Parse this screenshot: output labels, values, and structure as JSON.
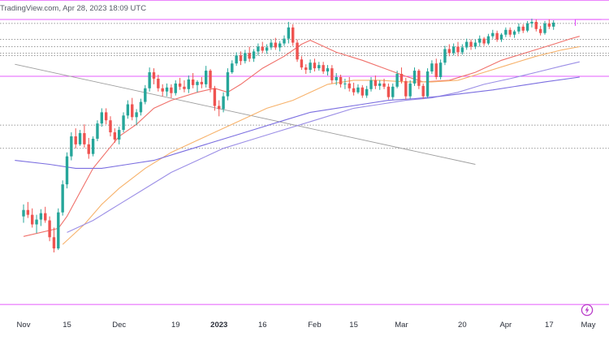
{
  "header": {
    "text": "TradingView.com, Apr 28, 2023 18:09 UTC"
  },
  "colors": {
    "bull": "#26a69a",
    "bear": "#ef5350",
    "ema_fast": "#f0706a",
    "ema_mid": "#f7b26b",
    "ema_slow": "#9b8ee6",
    "ema_long": "#7b6ee0",
    "magenta": "#e040fb",
    "trend": "#9e9e9e",
    "level": "#7a7a7a"
  },
  "chart_data": {
    "type": "candlestick",
    "title": "",
    "xlabel": "",
    "ylabel": "",
    "ylim": [
      -6,
      31
    ],
    "grid": false,
    "x_ticks": [
      {
        "label": "Nov",
        "index": 0,
        "bold": false
      },
      {
        "label": "15",
        "index": 10,
        "bold": false
      },
      {
        "label": "Dec",
        "index": 22,
        "bold": false
      },
      {
        "label": "19",
        "index": 35,
        "bold": false
      },
      {
        "label": "2023",
        "index": 45,
        "bold": true
      },
      {
        "label": "16",
        "index": 55,
        "bold": false
      },
      {
        "label": "Feb",
        "index": 67,
        "bold": false
      },
      {
        "label": "15",
        "index": 76,
        "bold": false
      },
      {
        "label": "Mar",
        "index": 87,
        "bold": false
      },
      {
        "label": "20",
        "index": 101,
        "bold": false
      },
      {
        "label": "Apr",
        "index": 111,
        "bold": false
      },
      {
        "label": "17",
        "index": 121,
        "bold": false
      },
      {
        "label": "May",
        "index": 130,
        "bold": false
      }
    ],
    "candles": [
      [
        6.0,
        7.5,
        5.2,
        6.8
      ],
      [
        6.8,
        7.8,
        5.8,
        6.2
      ],
      [
        6.2,
        7.0,
        4.6,
        5.0
      ],
      [
        5.0,
        6.2,
        3.9,
        5.6
      ],
      [
        5.6,
        6.9,
        4.8,
        6.4
      ],
      [
        6.4,
        7.2,
        5.2,
        5.5
      ],
      [
        5.5,
        6.0,
        2.9,
        3.4
      ],
      [
        3.4,
        4.6,
        1.5,
        2.0
      ],
      [
        2.0,
        7.0,
        1.8,
        6.5
      ],
      [
        6.5,
        10.5,
        6.1,
        10.0
      ],
      [
        10.0,
        14.0,
        9.5,
        13.5
      ],
      [
        13.5,
        16.5,
        13.0,
        16.0
      ],
      [
        16.0,
        17.0,
        14.5,
        15.0
      ],
      [
        15.0,
        16.8,
        14.8,
        16.4
      ],
      [
        16.4,
        17.5,
        14.6,
        15.0
      ],
      [
        15.0,
        15.8,
        13.2,
        13.8
      ],
      [
        13.8,
        16.0,
        13.5,
        15.7
      ],
      [
        15.7,
        18.0,
        15.4,
        17.6
      ],
      [
        17.6,
        19.5,
        17.2,
        19.0
      ],
      [
        19.0,
        19.5,
        17.5,
        18.0
      ],
      [
        18.0,
        18.5,
        16.0,
        16.5
      ],
      [
        16.5,
        17.0,
        15.2,
        15.6
      ],
      [
        15.6,
        17.2,
        15.0,
        16.8
      ],
      [
        16.8,
        19.0,
        16.5,
        18.6
      ],
      [
        18.6,
        20.5,
        18.2,
        20.0
      ],
      [
        20.0,
        20.8,
        18.0,
        18.4
      ],
      [
        18.4,
        19.4,
        17.4,
        19.0
      ],
      [
        19.0,
        20.7,
        18.6,
        20.3
      ],
      [
        20.3,
        22.4,
        20.0,
        22.0
      ],
      [
        22.0,
        24.6,
        21.6,
        24.0
      ],
      [
        24.0,
        24.5,
        22.5,
        23.2
      ],
      [
        23.2,
        23.7,
        21.6,
        22.0
      ],
      [
        22.0,
        22.5,
        21.0,
        21.6
      ],
      [
        21.6,
        22.6,
        21.0,
        22.1
      ],
      [
        22.1,
        22.5,
        20.8,
        21.4
      ],
      [
        21.4,
        23.0,
        21.1,
        22.6
      ],
      [
        22.6,
        23.3,
        21.8,
        22.2
      ],
      [
        22.2,
        23.0,
        21.5,
        21.9
      ],
      [
        21.9,
        23.6,
        21.4,
        23.1
      ],
      [
        23.1,
        23.9,
        22.0,
        22.4
      ],
      [
        22.4,
        23.0,
        21.5,
        22.8
      ],
      [
        22.8,
        23.4,
        22.0,
        22.5
      ],
      [
        22.5,
        24.8,
        22.1,
        24.2
      ],
      [
        24.2,
        24.4,
        21.5,
        22.0
      ],
      [
        22.0,
        22.3,
        19.2,
        19.8
      ],
      [
        19.8,
        20.5,
        18.5,
        19.4
      ],
      [
        19.4,
        21.5,
        19.0,
        21.0
      ],
      [
        21.0,
        24.5,
        20.5,
        24.0
      ],
      [
        24.0,
        25.5,
        23.8,
        25.1
      ],
      [
        25.1,
        26.5,
        24.8,
        26.1
      ],
      [
        26.1,
        26.6,
        24.9,
        25.4
      ],
      [
        25.4,
        26.8,
        25.1,
        26.4
      ],
      [
        26.4,
        27.2,
        25.3,
        25.7
      ],
      [
        25.7,
        26.9,
        25.3,
        26.6
      ],
      [
        26.6,
        27.6,
        26.1,
        27.2
      ],
      [
        27.2,
        27.8,
        26.4,
        26.7
      ],
      [
        26.7,
        27.5,
        26.3,
        27.1
      ],
      [
        27.1,
        28.1,
        26.8,
        27.7
      ],
      [
        27.7,
        28.3,
        26.8,
        27.1
      ],
      [
        27.1,
        27.9,
        26.6,
        27.6
      ],
      [
        27.6,
        28.6,
        27.3,
        28.2
      ],
      [
        28.2,
        30.3,
        27.6,
        29.6
      ],
      [
        29.6,
        30.0,
        27.3,
        27.7
      ],
      [
        27.7,
        28.1,
        25.3,
        25.6
      ],
      [
        25.6,
        26.0,
        24.3,
        24.6
      ],
      [
        24.6,
        25.0,
        23.8,
        24.3
      ],
      [
        24.3,
        25.6,
        23.9,
        25.2
      ],
      [
        25.2,
        25.7,
        24.1,
        24.5
      ],
      [
        24.5,
        25.3,
        24.2,
        24.9
      ],
      [
        24.9,
        25.3,
        23.8,
        24.1
      ],
      [
        24.1,
        24.9,
        23.6,
        24.5
      ],
      [
        24.5,
        24.9,
        22.6,
        23.0
      ],
      [
        23.0,
        23.9,
        22.4,
        23.4
      ],
      [
        23.4,
        23.7,
        22.1,
        22.5
      ],
      [
        22.5,
        23.2,
        21.9,
        22.6
      ],
      [
        22.6,
        23.4,
        21.6,
        22.0
      ],
      [
        22.0,
        22.7,
        21.1,
        21.5
      ],
      [
        21.5,
        22.5,
        21.3,
        22.1
      ],
      [
        22.1,
        22.4,
        20.8,
        21.1
      ],
      [
        21.1,
        22.3,
        20.8,
        21.9
      ],
      [
        21.9,
        23.4,
        21.6,
        23.0
      ],
      [
        23.0,
        23.6,
        21.9,
        22.3
      ],
      [
        22.3,
        23.0,
        21.8,
        22.6
      ],
      [
        22.6,
        23.2,
        21.9,
        22.2
      ],
      [
        22.2,
        22.6,
        20.6,
        20.9
      ],
      [
        20.9,
        22.6,
        20.6,
        22.2
      ],
      [
        22.2,
        24.2,
        22.0,
        23.8
      ],
      [
        23.8,
        24.6,
        22.6,
        22.9
      ],
      [
        22.9,
        23.3,
        20.6,
        21.0
      ],
      [
        21.0,
        23.0,
        20.7,
        22.6
      ],
      [
        22.6,
        24.6,
        22.3,
        24.2
      ],
      [
        24.2,
        24.4,
        21.9,
        22.3
      ],
      [
        22.3,
        22.6,
        20.7,
        21.0
      ],
      [
        21.0,
        24.5,
        20.8,
        24.1
      ],
      [
        24.1,
        25.5,
        23.8,
        25.1
      ],
      [
        25.1,
        25.7,
        23.1,
        23.4
      ],
      [
        23.4,
        25.6,
        23.1,
        25.2
      ],
      [
        25.2,
        27.3,
        24.9,
        26.9
      ],
      [
        26.9,
        27.5,
        26.0,
        26.4
      ],
      [
        26.4,
        27.6,
        26.1,
        27.2
      ],
      [
        27.2,
        27.8,
        26.0,
        26.5
      ],
      [
        26.5,
        27.5,
        26.2,
        27.1
      ],
      [
        27.1,
        28.2,
        26.8,
        27.8
      ],
      [
        27.8,
        28.1,
        26.8,
        27.2
      ],
      [
        27.2,
        28.1,
        26.9,
        27.7
      ],
      [
        27.7,
        28.6,
        27.2,
        28.2
      ],
      [
        28.2,
        28.4,
        27.3,
        27.6
      ],
      [
        27.6,
        28.8,
        27.4,
        28.5
      ],
      [
        28.5,
        29.3,
        28.2,
        28.9
      ],
      [
        28.9,
        29.2,
        27.8,
        28.1
      ],
      [
        28.1,
        28.9,
        27.8,
        28.7
      ],
      [
        28.7,
        29.6,
        28.4,
        29.3
      ],
      [
        29.3,
        29.6,
        28.4,
        28.7
      ],
      [
        28.7,
        29.3,
        28.3,
        29.1
      ],
      [
        29.1,
        30.1,
        28.8,
        29.7
      ],
      [
        29.7,
        30.0,
        28.9,
        29.2
      ],
      [
        29.2,
        30.4,
        29.0,
        30.1
      ],
      [
        30.1,
        30.7,
        29.6,
        30.3
      ],
      [
        30.3,
        30.6,
        29.1,
        29.4
      ],
      [
        29.4,
        29.8,
        28.6,
        28.9
      ],
      [
        28.9,
        30.4,
        28.7,
        30.1
      ],
      [
        30.1,
        30.6,
        29.4,
        29.7
      ],
      [
        29.7,
        30.5,
        29.3,
        30.2
      ]
    ],
    "candle_unit_note": "",
    "series": [
      {
        "key": "ema_fast",
        "points": [
          [
            0,
            3.5
          ],
          [
            8,
            4.5
          ],
          [
            10,
            6
          ],
          [
            13,
            9
          ],
          [
            16,
            12
          ],
          [
            19,
            14
          ],
          [
            22,
            16
          ],
          [
            26,
            17.5
          ],
          [
            30,
            19.5
          ],
          [
            34,
            20.5
          ],
          [
            40,
            21.5
          ],
          [
            44,
            22
          ],
          [
            47,
            21.5
          ],
          [
            50,
            22.5
          ],
          [
            55,
            24.5
          ],
          [
            60,
            26
          ],
          [
            64,
            27.5
          ],
          [
            66,
            28
          ],
          [
            68,
            27.5
          ],
          [
            72,
            26.5
          ],
          [
            78,
            25.5
          ],
          [
            83,
            24.5
          ],
          [
            88,
            23.5
          ],
          [
            92,
            22.8
          ],
          [
            98,
            23
          ],
          [
            104,
            24
          ],
          [
            110,
            25.5
          ],
          [
            116,
            26.5
          ],
          [
            122,
            27.5
          ],
          [
            126,
            28.2
          ],
          [
            128,
            28.5
          ]
        ]
      },
      {
        "key": "ema_mid",
        "points": [
          [
            9,
            2.5
          ],
          [
            14,
            5
          ],
          [
            18,
            7.5
          ],
          [
            22,
            9.5
          ],
          [
            28,
            12
          ],
          [
            34,
            14
          ],
          [
            40,
            15.5
          ],
          [
            44,
            16.5
          ],
          [
            50,
            18
          ],
          [
            56,
            19.5
          ],
          [
            62,
            20.5
          ],
          [
            66,
            21.5
          ],
          [
            70,
            22.5
          ],
          [
            76,
            23
          ],
          [
            82,
            23
          ],
          [
            88,
            22.8
          ],
          [
            94,
            22.8
          ],
          [
            100,
            23
          ],
          [
            106,
            24
          ],
          [
            112,
            25
          ],
          [
            118,
            26
          ],
          [
            124,
            26.8
          ],
          [
            128,
            27.2
          ]
        ]
      },
      {
        "key": "ema_slow",
        "points": [
          [
            10,
            4
          ],
          [
            16,
            5.5
          ],
          [
            22,
            7.5
          ],
          [
            28,
            9.5
          ],
          [
            34,
            11.5
          ],
          [
            40,
            13
          ],
          [
            46,
            14.5
          ],
          [
            52,
            15.5
          ],
          [
            58,
            16.5
          ],
          [
            64,
            17.5
          ],
          [
            70,
            18.5
          ],
          [
            76,
            19.5
          ],
          [
            82,
            20
          ],
          [
            88,
            20.5
          ],
          [
            94,
            20.8
          ],
          [
            100,
            21.5
          ],
          [
            106,
            22.5
          ],
          [
            112,
            23.2
          ],
          [
            118,
            24
          ],
          [
            124,
            24.8
          ],
          [
            128,
            25.3
          ]
        ]
      },
      {
        "key": "ema_long",
        "points": [
          [
            -2,
            13
          ],
          [
            6,
            12.5
          ],
          [
            12,
            12
          ],
          [
            18,
            12
          ],
          [
            24,
            12.5
          ],
          [
            30,
            13
          ],
          [
            36,
            14
          ],
          [
            42,
            15
          ],
          [
            48,
            16
          ],
          [
            54,
            17
          ],
          [
            60,
            18
          ],
          [
            66,
            19
          ],
          [
            72,
            19.5
          ],
          [
            78,
            20
          ],
          [
            84,
            20.5
          ],
          [
            90,
            20.7
          ],
          [
            96,
            21
          ],
          [
            102,
            21.4
          ],
          [
            108,
            21.8
          ],
          [
            114,
            22.3
          ],
          [
            120,
            22.8
          ],
          [
            128,
            23.4
          ]
        ]
      }
    ],
    "trendline": {
      "from": [
        -2,
        25
      ],
      "to": [
        104,
        12.5
      ]
    },
    "levels_magenta": [
      -5.0,
      23.5,
      30.6,
      33.0
    ],
    "levels_dotted": [
      30.1,
      28.1,
      27.2,
      26.4,
      26.1,
      17.4,
      14.5
    ],
    "resistance_step": {
      "from": [
        127,
        30.6
      ],
      "to": [
        133,
        30.6
      ],
      "drop_to": 29.8
    }
  }
}
